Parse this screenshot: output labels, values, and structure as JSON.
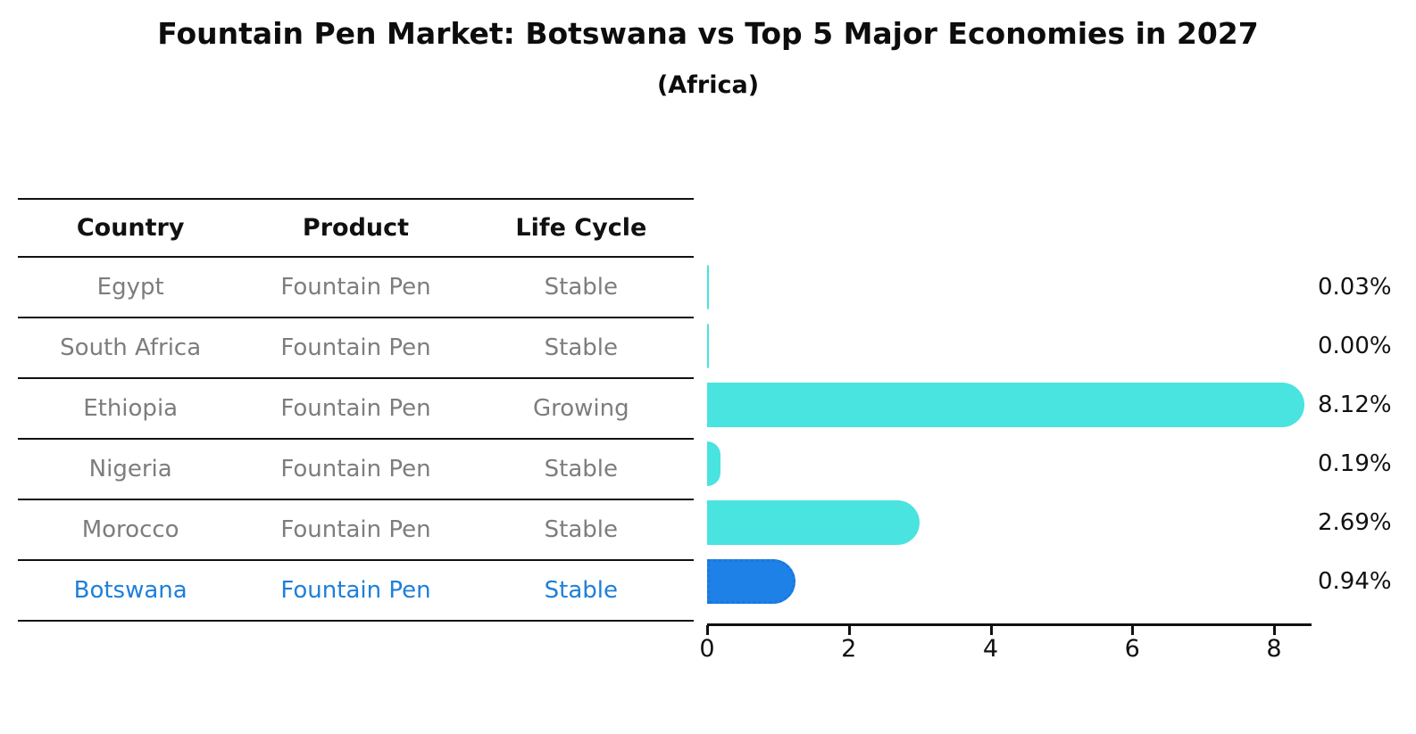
{
  "title": "Fountain Pen Market: Botswana vs Top 5 Major Economies in 2027",
  "subtitle": "(Africa)",
  "table": {
    "headers": [
      "Country",
      "Product",
      "Life Cycle"
    ],
    "rows": [
      {
        "country": "Egypt",
        "product": "Fountain Pen",
        "life_cycle": "Stable"
      },
      {
        "country": "South Africa",
        "product": "Fountain Pen",
        "life_cycle": "Stable"
      },
      {
        "country": "Ethiopia",
        "product": "Fountain Pen",
        "life_cycle": "Growing"
      },
      {
        "country": "Nigeria",
        "product": "Fountain Pen",
        "life_cycle": "Stable"
      },
      {
        "country": "Morocco",
        "product": "Fountain Pen",
        "life_cycle": "Stable"
      },
      {
        "country": "Botswana",
        "product": "Fountain Pen",
        "life_cycle": "Stable"
      }
    ]
  },
  "chart_data": {
    "type": "bar",
    "orientation": "horizontal",
    "title": "Fountain Pen Market: Botswana vs Top 5 Major Economies in 2027 (Africa)",
    "categories": [
      "Egypt",
      "South Africa",
      "Ethiopia",
      "Nigeria",
      "Morocco",
      "Botswana"
    ],
    "values": [
      0.03,
      0.0,
      8.12,
      0.19,
      2.69,
      0.94
    ],
    "value_labels": [
      "0.03%",
      "0.00%",
      "8.12%",
      "0.19%",
      "2.69%",
      "0.94%"
    ],
    "x_ticks": [
      0,
      2,
      4,
      6,
      8
    ],
    "xlim": [
      0,
      8.5
    ],
    "grid": false,
    "bar_color": "#49e3e0",
    "highlight_index": 5,
    "highlight_color": "#1e81e8",
    "highlight_border_color": "#1a76dd",
    "text_highlight_color": "#1e7fd9"
  }
}
